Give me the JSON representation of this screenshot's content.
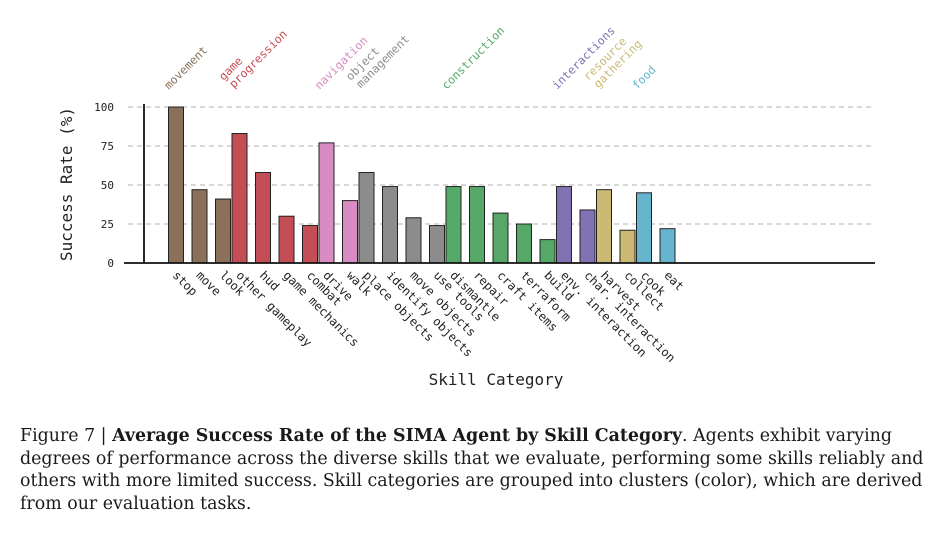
{
  "chart_data": {
    "type": "bar",
    "xlabel": "Skill Category",
    "ylabel": "Success Rate (%)",
    "ylim": [
      0,
      100
    ],
    "yticks": [
      0,
      25,
      50,
      75,
      100
    ],
    "grid": "horizontal dashed",
    "groups": [
      {
        "name": "movement",
        "name_lines": [
          "movement"
        ],
        "color": "#8b7159",
        "bars": [
          {
            "label": "stop",
            "value": 100
          },
          {
            "label": "move",
            "value": 47
          },
          {
            "label": "look",
            "value": 41
          }
        ]
      },
      {
        "name": "game progression",
        "name_lines": [
          "game",
          "progression"
        ],
        "color": "#c44e55",
        "bars": [
          {
            "label": "other gameplay",
            "value": 83
          },
          {
            "label": "hud",
            "value": 58
          },
          {
            "label": "game mechanics",
            "value": 30
          },
          {
            "label": "combat",
            "value": 24
          }
        ]
      },
      {
        "name": "navigation",
        "name_lines": [
          "navigation"
        ],
        "color": "#da8bc3",
        "bars": [
          {
            "label": "drive",
            "value": 77
          },
          {
            "label": "walk",
            "value": 40
          }
        ]
      },
      {
        "name": "object management",
        "name_lines": [
          "object",
          "management"
        ],
        "color": "#8c8c8c",
        "bars": [
          {
            "label": "place objects",
            "value": 58
          },
          {
            "label": "identify objects",
            "value": 49
          },
          {
            "label": "move objects",
            "value": 29
          },
          {
            "label": "use tools",
            "value": 24
          }
        ]
      },
      {
        "name": "construction",
        "name_lines": [
          "construction"
        ],
        "color": "#55a868",
        "bars": [
          {
            "label": "dismantle",
            "value": 49
          },
          {
            "label": "repair",
            "value": 49
          },
          {
            "label": "craft items",
            "value": 32
          },
          {
            "label": "terraform",
            "value": 25
          },
          {
            "label": "build",
            "value": 15
          }
        ]
      },
      {
        "name": "interactions",
        "name_lines": [
          "interactions"
        ],
        "color": "#8172b3",
        "bars": [
          {
            "label": "env. interaction",
            "value": 49
          },
          {
            "label": "char. interaction",
            "value": 34
          }
        ]
      },
      {
        "name": "resource gathering",
        "name_lines": [
          "resource",
          "gathering"
        ],
        "color": "#ccb974",
        "bars": [
          {
            "label": "harvest",
            "value": 47
          },
          {
            "label": "collect",
            "value": 21
          }
        ]
      },
      {
        "name": "food",
        "name_lines": [
          "food"
        ],
        "color": "#64b5cd",
        "bars": [
          {
            "label": "cook",
            "value": 45
          },
          {
            "label": "eat",
            "value": 22
          }
        ]
      }
    ]
  },
  "caption": {
    "figure_label": "Figure 7 | ",
    "title": "Average Success Rate of the SIMA Agent by Skill Category",
    "body": ". Agents exhibit varying degrees of performance across the diverse skills that we evaluate, performing some skills reliably and others with more limited success. Skill categories are grouped into clusters (color), which are derived from our evaluation tasks."
  }
}
